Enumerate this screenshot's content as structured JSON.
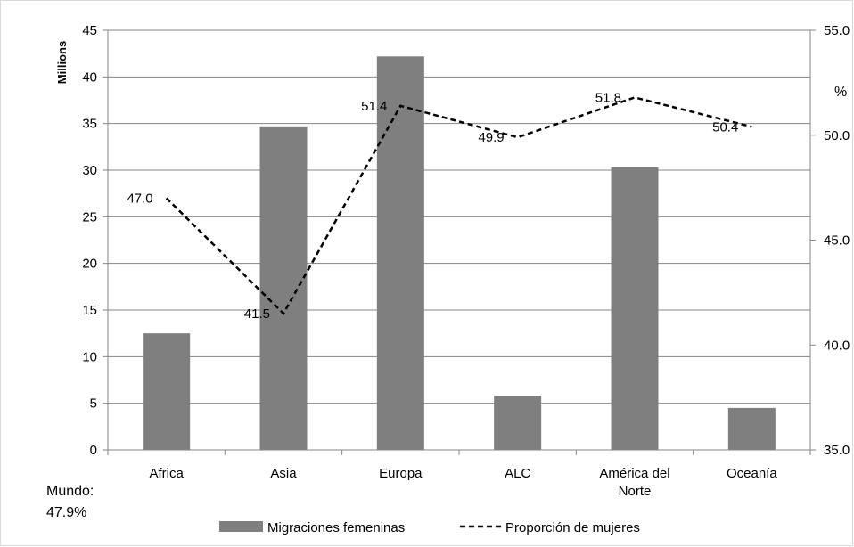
{
  "chart_data": {
    "type": "bar",
    "categories": [
      "Africa",
      "Asia",
      "Europa",
      "ALC",
      "América del Norte",
      "Oceanía"
    ],
    "category_lines": [
      [
        "Africa"
      ],
      [
        "Asia"
      ],
      [
        "Europa"
      ],
      [
        "ALC"
      ],
      [
        "América del",
        "Norte"
      ],
      [
        "Oceanía"
      ]
    ],
    "series": [
      {
        "name": "Migraciones femeninas",
        "type": "bar",
        "axis": "left",
        "color": "#7f7f7f",
        "values": [
          12.5,
          34.7,
          42.2,
          5.8,
          30.3,
          4.5
        ]
      },
      {
        "name": "Proporción de mujeres",
        "type": "line",
        "axis": "right",
        "color": "#000000",
        "line_style": "dashed",
        "values": [
          47.0,
          41.5,
          51.4,
          49.9,
          51.8,
          50.4
        ],
        "labels": [
          "47.0",
          "41.5",
          "51.4",
          "49.9",
          "51.8",
          "50.4"
        ]
      }
    ],
    "y_left": {
      "label": "Millions",
      "ylim": [
        0,
        45
      ],
      "ticks": [
        "0",
        "5",
        "10",
        "15",
        "20",
        "25",
        "30",
        "35",
        "40",
        "45"
      ]
    },
    "y_right": {
      "label": "%",
      "ylim": [
        35,
        55
      ],
      "ticks": [
        "35.0",
        "40.0",
        "45.0",
        "50.0",
        "55.0"
      ]
    },
    "grid": true,
    "legend_position": "bottom",
    "annotation": {
      "line1": "Mundo:",
      "line2": "47.9%"
    }
  }
}
